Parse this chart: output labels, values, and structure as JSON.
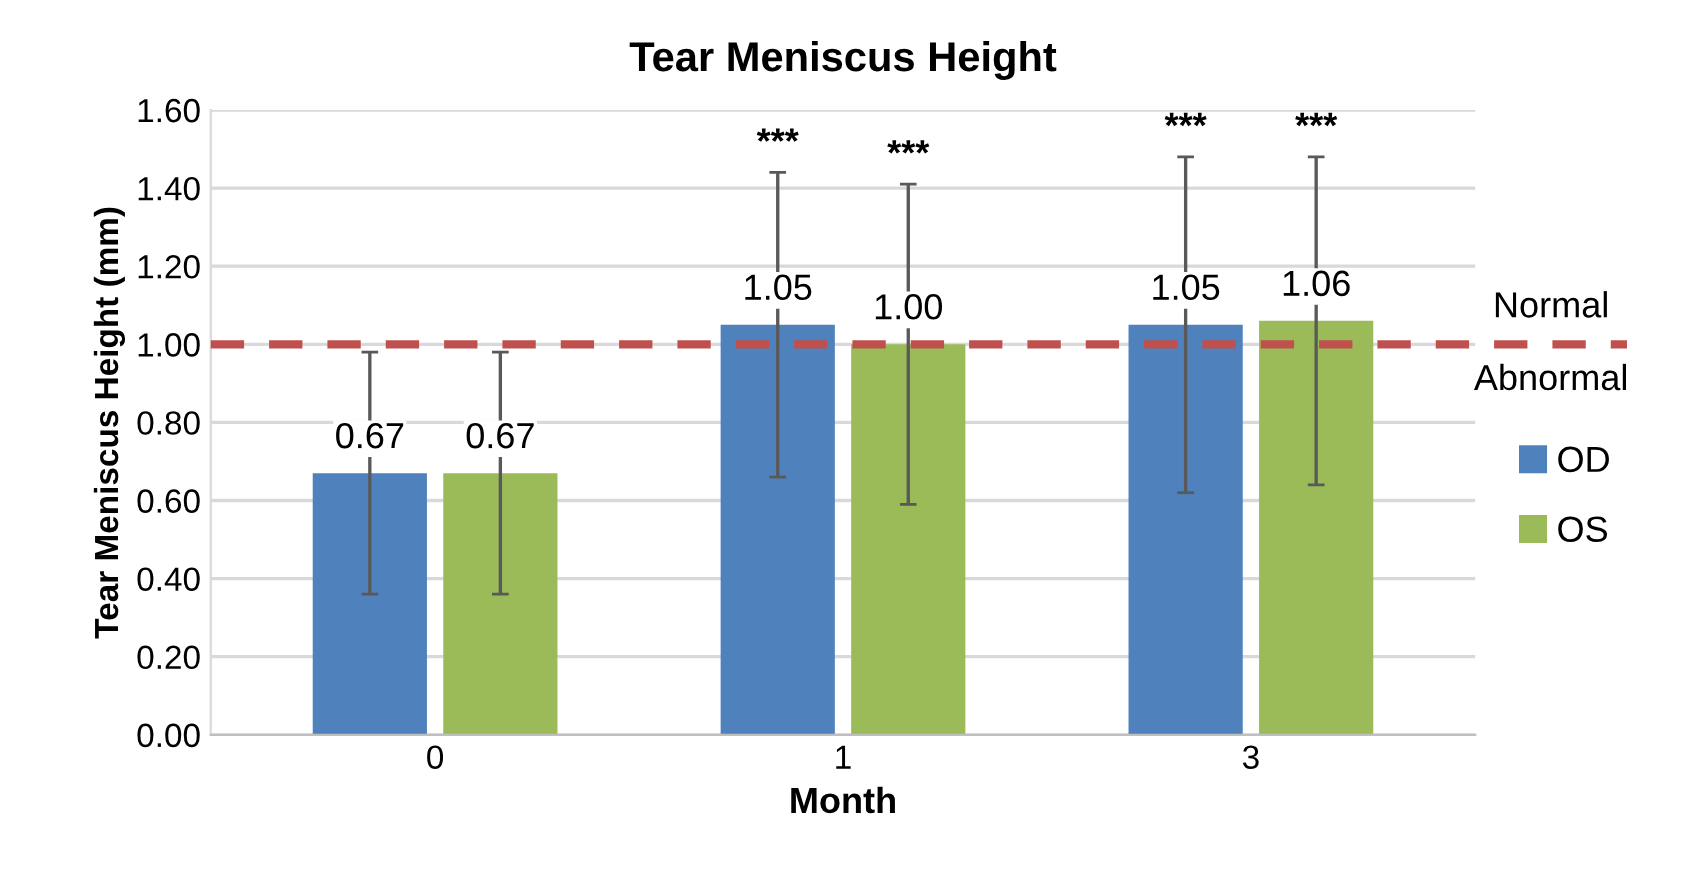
{
  "chart_data": {
    "type": "bar",
    "title": "Tear Meniscus Height",
    "xlabel": "Month",
    "ylabel": "Tear Meniscus Height (mm)",
    "categories": [
      "0",
      "1",
      "3"
    ],
    "series": [
      {
        "name": "OD",
        "color": "#4f81bd",
        "values": [
          0.67,
          1.05,
          1.05
        ],
        "errors": [
          0.31,
          0.39,
          0.43
        ],
        "value_labels": [
          "0.67",
          "1.05",
          "1.05"
        ]
      },
      {
        "name": "OS",
        "color": "#9bbb59",
        "values": [
          0.67,
          1.0,
          1.06
        ],
        "errors": [
          0.31,
          0.41,
          0.42
        ],
        "value_labels": [
          "0.67",
          "1.00",
          "1.06"
        ]
      }
    ],
    "ylim": [
      0,
      1.6
    ],
    "yticks": [
      {
        "value": 0,
        "label": "0.00"
      },
      {
        "value": 0.2,
        "label": "0.20"
      },
      {
        "value": 0.4,
        "label": "0.40"
      },
      {
        "value": 0.6,
        "label": "0.60"
      },
      {
        "value": 0.8,
        "label": "0.80"
      },
      {
        "value": 1.0,
        "label": "1.00"
      },
      {
        "value": 1.2,
        "label": "1.20"
      },
      {
        "value": 1.4,
        "label": "1.40"
      },
      {
        "value": 1.6,
        "label": "1.60"
      }
    ],
    "grid": "y",
    "legend": "right",
    "ref_lines": [
      {
        "axis": "y",
        "value": 1.0,
        "color": "#c0504d",
        "line_style": "dashed"
      }
    ],
    "annotations": [
      "Normal",
      "Abnormal",
      "***",
      "***",
      "***",
      "***"
    ]
  }
}
